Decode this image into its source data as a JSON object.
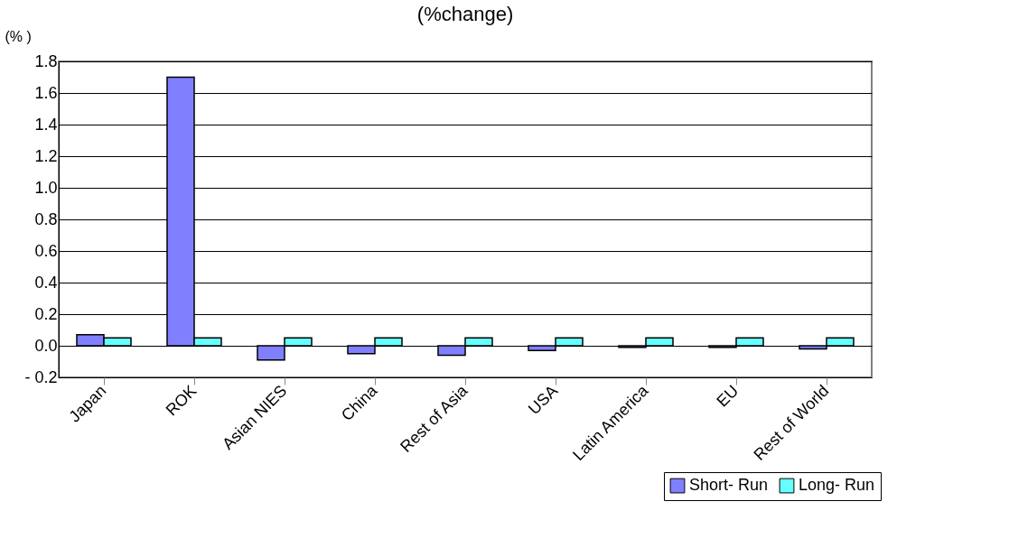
{
  "chart_data": {
    "type": "bar",
    "title": "(%change)",
    "ylabel": "(% )",
    "categories": [
      "Japan",
      "ROK",
      "Asian NIES",
      "China",
      "Rest of Asia",
      "USA",
      "Latin America",
      "EU",
      "Rest of World"
    ],
    "series": [
      {
        "name": "Short- Run",
        "color": "#8080ff",
        "values": [
          0.07,
          1.7,
          -0.09,
          -0.05,
          -0.06,
          -0.03,
          -0.01,
          -0.01,
          -0.02
        ]
      },
      {
        "name": "Long- Run",
        "color": "#66ffff",
        "values": [
          0.05,
          0.05,
          0.05,
          0.05,
          0.05,
          0.05,
          0.05,
          0.05,
          0.05
        ]
      }
    ],
    "ylim": [
      -0.2,
      1.8
    ],
    "yticks": [
      {
        "value": -0.2,
        "label": "- 0.2"
      },
      {
        "value": 0,
        "label": "0.0"
      },
      {
        "value": 0.2,
        "label": "0.2"
      },
      {
        "value": 0.4,
        "label": "0.4"
      },
      {
        "value": 0.6,
        "label": "0.6"
      },
      {
        "value": 0.8,
        "label": "0.8"
      },
      {
        "value": 1.0,
        "label": "1.0"
      },
      {
        "value": 1.2,
        "label": "1.2"
      },
      {
        "value": 1.4,
        "label": "1.4"
      },
      {
        "value": 1.6,
        "label": "1.6"
      },
      {
        "value": 1.8,
        "label": "1.8"
      }
    ],
    "grid": "y",
    "legend": "bottom right"
  }
}
